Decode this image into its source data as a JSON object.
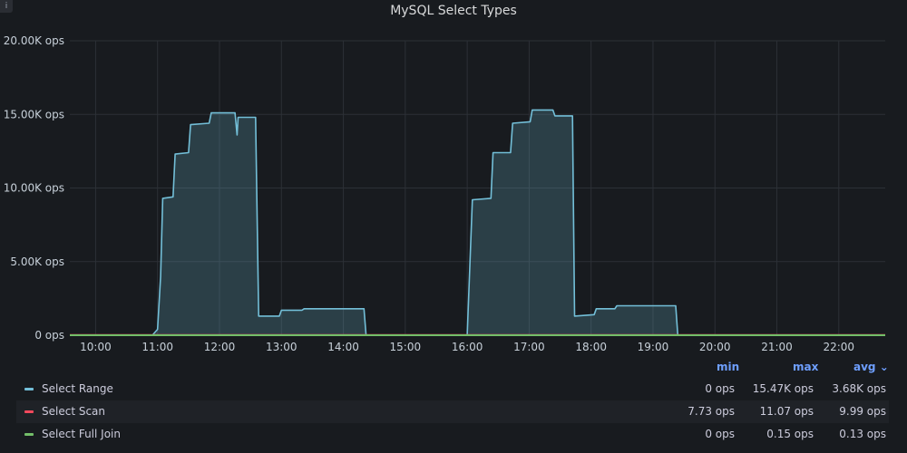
{
  "chart_data": {
    "type": "area",
    "title": "MySQL Select Types",
    "y_unit": "ops",
    "ylim": [
      0,
      20000
    ],
    "y_ticks": [
      "0 ops",
      "5.00K ops",
      "10.00K ops",
      "15.00K ops",
      "20.00K ops"
    ],
    "x_ticks": [
      "10:00",
      "11:00",
      "12:00",
      "13:00",
      "14:00",
      "15:00",
      "16:00",
      "17:00",
      "18:00",
      "19:00",
      "20:00",
      "21:00",
      "22:00"
    ],
    "xlim": [
      "09:35",
      "22:45"
    ],
    "grid": true,
    "legend_position": "bottom",
    "legend_columns": [
      "min",
      "max",
      "avg"
    ],
    "series": [
      {
        "name": "Select Range",
        "color": "#73bfd8",
        "fill": true,
        "min": "0 ops",
        "max": "15.47K ops",
        "avg": "3.68K ops",
        "points": [
          [
            "09:35",
            0
          ],
          [
            "10:55",
            0
          ],
          [
            "11:00",
            400
          ],
          [
            "11:03",
            4000
          ],
          [
            "11:05",
            9300
          ],
          [
            "11:15",
            9400
          ],
          [
            "11:17",
            12300
          ],
          [
            "11:30",
            12400
          ],
          [
            "11:32",
            14300
          ],
          [
            "11:50",
            14400
          ],
          [
            "11:52",
            15100
          ],
          [
            "12:15",
            15100
          ],
          [
            "12:17",
            13600
          ],
          [
            "12:18",
            14800
          ],
          [
            "12:35",
            14800
          ],
          [
            "12:38",
            1300
          ],
          [
            "12:58",
            1300
          ],
          [
            "13:00",
            1700
          ],
          [
            "13:20",
            1700
          ],
          [
            "13:22",
            1800
          ],
          [
            "14:20",
            1800
          ],
          [
            "14:22",
            0
          ],
          [
            "16:00",
            0
          ],
          [
            "16:05",
            9200
          ],
          [
            "16:23",
            9300
          ],
          [
            "16:25",
            12400
          ],
          [
            "16:42",
            12400
          ],
          [
            "16:44",
            14400
          ],
          [
            "17:01",
            14500
          ],
          [
            "17:03",
            15300
          ],
          [
            "17:23",
            15300
          ],
          [
            "17:25",
            14900
          ],
          [
            "17:42",
            14900
          ],
          [
            "17:44",
            1300
          ],
          [
            "18:03",
            1400
          ],
          [
            "18:05",
            1800
          ],
          [
            "18:23",
            1800
          ],
          [
            "18:25",
            2000
          ],
          [
            "19:22",
            2000
          ],
          [
            "19:24",
            0
          ],
          [
            "22:45",
            0
          ]
        ]
      },
      {
        "name": "Select Scan",
        "color": "#f2495c",
        "fill": false,
        "min": "7.73 ops",
        "max": "11.07 ops",
        "avg": "9.99 ops",
        "points": [
          [
            "09:35",
            9.99
          ],
          [
            "22:45",
            9.99
          ]
        ]
      },
      {
        "name": "Select Full Join",
        "color": "#73bf69",
        "fill": false,
        "min": "0 ops",
        "max": "0.15 ops",
        "avg": "0.13 ops",
        "points": [
          [
            "09:35",
            0.13
          ],
          [
            "22:45",
            0.13
          ]
        ]
      }
    ]
  }
}
